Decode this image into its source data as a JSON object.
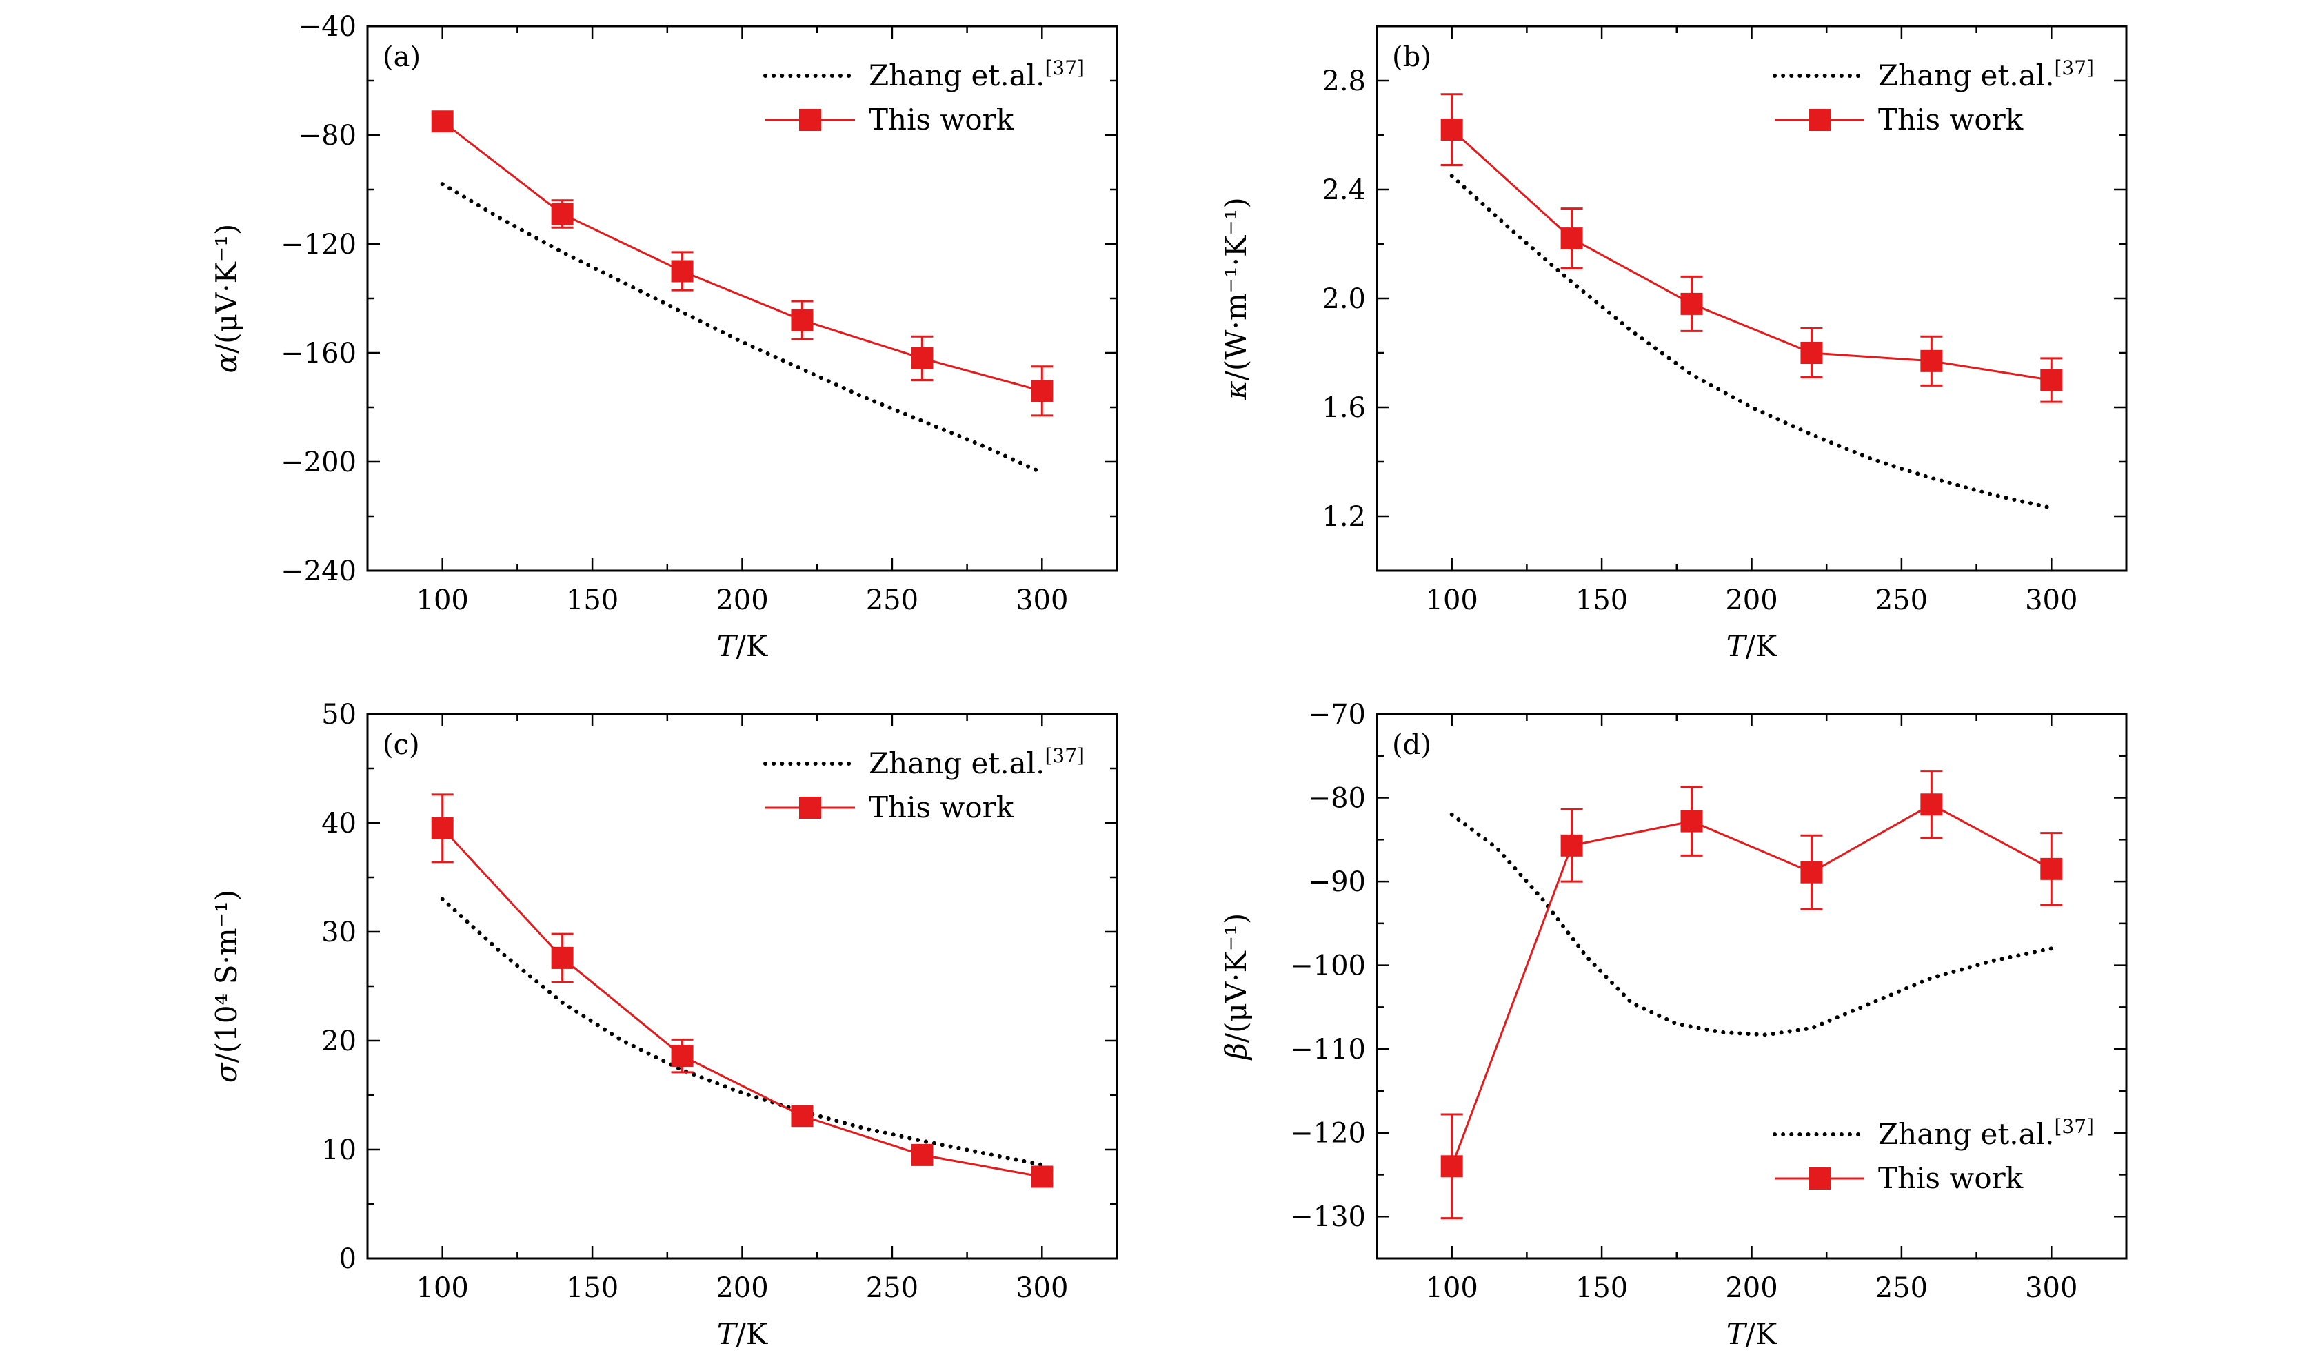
{
  "chart_data": [
    {
      "type": "line",
      "panel_label": "(a)",
      "xlabel_italic": "T",
      "xlabel_rest": "/K",
      "ylabel_italic": "α",
      "ylabel_rest": "/(μV·K⁻¹)",
      "xlim": [
        75,
        325
      ],
      "ylim": [
        -240,
        -40
      ],
      "xticks": [
        100,
        150,
        200,
        250,
        300
      ],
      "xtick_labels": [
        "100",
        "150",
        "200",
        "250",
        "300"
      ],
      "yticks": [
        -240,
        -200,
        -160,
        -120,
        -80,
        -40
      ],
      "ytick_labels": [
        "−240",
        "−200",
        "−160",
        "−120",
        "−80",
        "−40"
      ],
      "legend_position": "top-right",
      "series": [
        {
          "name": "Zhang et.al.",
          "name_sup": "[37]",
          "style": "dotted",
          "color": "#000000",
          "x": [
            100,
            120,
            140,
            160,
            180,
            200,
            220,
            240,
            260,
            280,
            300
          ],
          "y": [
            -98,
            -111,
            -123,
            -134,
            -145,
            -156,
            -166,
            -176,
            -185,
            -194,
            -204
          ]
        },
        {
          "name": "This work",
          "style": "line-square",
          "color": "#e41a1c",
          "x": [
            100,
            140,
            180,
            220,
            260,
            300
          ],
          "y": [
            -75,
            -109,
            -130,
            -148,
            -162,
            -174
          ],
          "err": [
            0,
            5,
            7,
            7,
            8,
            9
          ]
        }
      ]
    },
    {
      "type": "line",
      "panel_label": "(b)",
      "xlabel_italic": "T",
      "xlabel_rest": "/K",
      "ylabel_italic": "κ",
      "ylabel_rest": "/(W·m⁻¹·K⁻¹)",
      "xlim": [
        75,
        325
      ],
      "ylim": [
        1.0,
        3.0
      ],
      "xticks": [
        100,
        150,
        200,
        250,
        300
      ],
      "xtick_labels": [
        "100",
        "150",
        "200",
        "250",
        "300"
      ],
      "yticks": [
        1.2,
        1.6,
        2.0,
        2.4,
        2.8
      ],
      "ytick_labels": [
        "1.2",
        "1.6",
        "2.0",
        "2.4",
        "2.8"
      ],
      "legend_position": "top-right",
      "series": [
        {
          "name": "Zhang et.al.",
          "name_sup": "[37]",
          "style": "dotted",
          "color": "#000000",
          "x": [
            100,
            120,
            140,
            160,
            180,
            200,
            220,
            240,
            260,
            280,
            300
          ],
          "y": [
            2.45,
            2.25,
            2.06,
            1.88,
            1.72,
            1.6,
            1.5,
            1.41,
            1.34,
            1.28,
            1.23
          ]
        },
        {
          "name": "This work",
          "style": "line-square",
          "color": "#e41a1c",
          "x": [
            100,
            140,
            180,
            220,
            260,
            300
          ],
          "y": [
            2.62,
            2.22,
            1.98,
            1.8,
            1.77,
            1.7
          ],
          "err": [
            0.13,
            0.11,
            0.1,
            0.09,
            0.09,
            0.08
          ]
        }
      ]
    },
    {
      "type": "line",
      "panel_label": "(c)",
      "xlabel_italic": "T",
      "xlabel_rest": "/K",
      "ylabel_italic": "σ",
      "ylabel_rest": "/(10⁴ S·m⁻¹)",
      "xlim": [
        75,
        325
      ],
      "ylim": [
        0,
        50
      ],
      "xticks": [
        100,
        150,
        200,
        250,
        300
      ],
      "xtick_labels": [
        "100",
        "150",
        "200",
        "250",
        "300"
      ],
      "yticks": [
        0,
        10,
        20,
        30,
        40,
        50
      ],
      "ytick_labels": [
        "0",
        "10",
        "20",
        "30",
        "40",
        "50"
      ],
      "legend_position": "top-right",
      "series": [
        {
          "name": "Zhang et.al.",
          "name_sup": "[37]",
          "style": "dotted",
          "color": "#000000",
          "x": [
            100,
            120,
            140,
            160,
            180,
            200,
            220,
            240,
            260,
            280,
            300
          ],
          "y": [
            33,
            28,
            23.5,
            20,
            17.3,
            15.2,
            13.5,
            12,
            10.8,
            9.7,
            8.6
          ]
        },
        {
          "name": "This work",
          "style": "line-square",
          "color": "#e41a1c",
          "x": [
            100,
            140,
            180,
            220,
            260,
            300
          ],
          "y": [
            39.5,
            27.6,
            18.6,
            13.1,
            9.5,
            7.5
          ],
          "err": [
            3.1,
            2.2,
            1.5,
            0.8,
            0.6,
            0.6
          ]
        }
      ]
    },
    {
      "type": "line",
      "panel_label": "(d)",
      "xlabel_italic": "T",
      "xlabel_rest": "/K",
      "ylabel_italic": "β",
      "ylabel_rest": "/(μV·K⁻¹)",
      "xlim": [
        75,
        325
      ],
      "ylim": [
        -135,
        -70
      ],
      "xticks": [
        100,
        150,
        200,
        250,
        300
      ],
      "xtick_labels": [
        "100",
        "150",
        "200",
        "250",
        "300"
      ],
      "yticks": [
        -130,
        -120,
        -110,
        -100,
        -90,
        -80,
        -70
      ],
      "ytick_labels": [
        "−130",
        "−120",
        "−110",
        "−100",
        "−90",
        "−80",
        "−70"
      ],
      "legend_position": "bottom-right",
      "series": [
        {
          "name": "Zhang et.al.",
          "name_sup": "[37]",
          "style": "dotted",
          "color": "#000000",
          "x": [
            100,
            115,
            130,
            145,
            160,
            175,
            190,
            205,
            220,
            240,
            260,
            280,
            300
          ],
          "y": [
            -82,
            -86,
            -92,
            -99,
            -104.5,
            -107,
            -108,
            -108.3,
            -107.5,
            -104.5,
            -101.5,
            -99.5,
            -98
          ]
        },
        {
          "name": "This work",
          "style": "line-square",
          "color": "#e41a1c",
          "x": [
            100,
            140,
            180,
            220,
            260,
            300
          ],
          "y": [
            -124,
            -85.7,
            -82.8,
            -88.9,
            -80.8,
            -88.5
          ],
          "err": [
            6.2,
            4.3,
            4.1,
            4.4,
            4.0,
            4.3
          ]
        }
      ]
    }
  ]
}
